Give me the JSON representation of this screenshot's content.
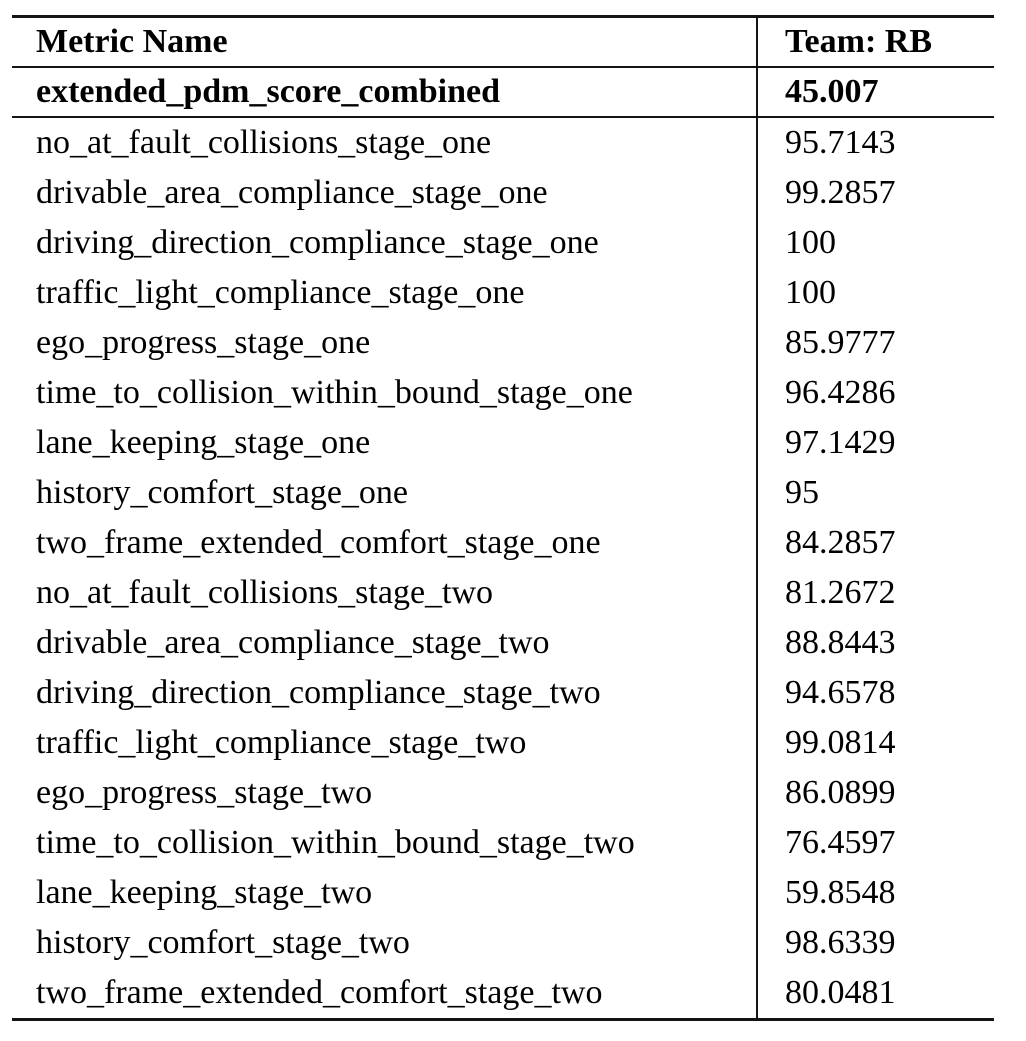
{
  "table": {
    "header": {
      "metric_col": "Metric Name",
      "team_col": "Team: RB"
    },
    "summary_row": {
      "metric": "extended_pdm_score_combined",
      "value": "45.007"
    },
    "rows": [
      {
        "metric": "no_at_fault_collisions_stage_one",
        "value": "95.7143"
      },
      {
        "metric": "drivable_area_compliance_stage_one",
        "value": "99.2857"
      },
      {
        "metric": "driving_direction_compliance_stage_one",
        "value": "100"
      },
      {
        "metric": "traffic_light_compliance_stage_one",
        "value": "100"
      },
      {
        "metric": "ego_progress_stage_one",
        "value": "85.9777"
      },
      {
        "metric": "time_to_collision_within_bound_stage_one",
        "value": "96.4286"
      },
      {
        "metric": "lane_keeping_stage_one",
        "value": "97.1429"
      },
      {
        "metric": "history_comfort_stage_one",
        "value": "95"
      },
      {
        "metric": "two_frame_extended_comfort_stage_one",
        "value": "84.2857"
      },
      {
        "metric": "no_at_fault_collisions_stage_two",
        "value": "81.2672"
      },
      {
        "metric": "drivable_area_compliance_stage_two",
        "value": "88.8443"
      },
      {
        "metric": "driving_direction_compliance_stage_two",
        "value": "94.6578"
      },
      {
        "metric": "traffic_light_compliance_stage_two",
        "value": "99.0814"
      },
      {
        "metric": "ego_progress_stage_two",
        "value": "86.0899"
      },
      {
        "metric": "time_to_collision_within_bound_stage_two",
        "value": "76.4597"
      },
      {
        "metric": "lane_keeping_stage_two",
        "value": "59.8548"
      },
      {
        "metric": "history_comfort_stage_two",
        "value": "98.6339"
      },
      {
        "metric": "two_frame_extended_comfort_stage_two",
        "value": "80.0481"
      }
    ],
    "colors": {
      "background": "#ffffff",
      "text": "#000000",
      "rule": "#141414"
    }
  }
}
